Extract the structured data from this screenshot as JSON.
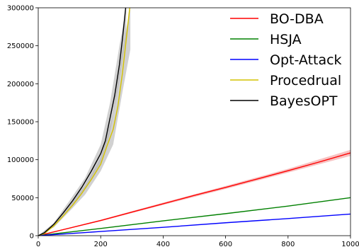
{
  "chart_data": {
    "type": "line",
    "title": "",
    "xlabel": "",
    "ylabel": "",
    "xlim": [
      0,
      1000
    ],
    "ylim": [
      0,
      300000
    ],
    "xticks": [
      0,
      200,
      400,
      600,
      800,
      1000
    ],
    "xtick_labels": [
      "0",
      "200",
      "400",
      "600",
      "800",
      "1000"
    ],
    "yticks": [
      0,
      50000,
      100000,
      150000,
      200000,
      250000,
      300000
    ],
    "ytick_labels": [
      "0",
      "50000",
      "100000",
      "150000",
      "200000",
      "250000",
      "300000"
    ],
    "grid": false,
    "legend_position": "top-right",
    "series": [
      {
        "name": "BO-DBA",
        "color": "#ff0000",
        "band_color": "#f4a6a6",
        "points": [
          [
            0,
            0
          ],
          [
            100,
            10000
          ],
          [
            200,
            20000
          ],
          [
            300,
            31000
          ],
          [
            400,
            42000
          ],
          [
            500,
            53000
          ],
          [
            600,
            63500
          ],
          [
            700,
            74500
          ],
          [
            800,
            85500
          ],
          [
            900,
            97000
          ],
          [
            1000,
            109000
          ]
        ],
        "band": [
          [
            0,
            0,
            0
          ],
          [
            200,
            19000,
            21000
          ],
          [
            400,
            40500,
            43500
          ],
          [
            600,
            61500,
            65500
          ],
          [
            800,
            83000,
            88000
          ],
          [
            1000,
            105000,
            113000
          ]
        ]
      },
      {
        "name": "HSJA",
        "color": "#008000",
        "points": [
          [
            0,
            0
          ],
          [
            200,
            9500
          ],
          [
            400,
            19500
          ],
          [
            600,
            29000
          ],
          [
            800,
            39000
          ],
          [
            1000,
            50000
          ]
        ]
      },
      {
        "name": "Opt-Attack",
        "color": "#0000ff",
        "points": [
          [
            0,
            0
          ],
          [
            200,
            5500
          ],
          [
            400,
            11000
          ],
          [
            600,
            17000
          ],
          [
            800,
            22500
          ],
          [
            1000,
            28500
          ]
        ]
      },
      {
        "name": "Procedrual",
        "color": "#d4c200",
        "points": [
          [
            0,
            0
          ],
          [
            20,
            3000
          ],
          [
            50,
            13000
          ],
          [
            80,
            26000
          ],
          [
            110,
            40000
          ],
          [
            140,
            56000
          ],
          [
            170,
            74000
          ],
          [
            200,
            94000
          ],
          [
            220,
            118000
          ],
          [
            240,
            140000
          ],
          [
            255,
            170000
          ],
          [
            270,
            215000
          ],
          [
            285,
            270000
          ],
          [
            293,
            300000
          ]
        ],
        "band": [
          [
            0,
            0,
            0
          ],
          [
            50,
            11000,
            15000
          ],
          [
            100,
            32000,
            40000
          ],
          [
            150,
            54000,
            66000
          ],
          [
            200,
            85000,
            103000
          ],
          [
            240,
            120000,
            160000
          ],
          [
            270,
            190000,
            245000
          ],
          [
            295,
            245000,
            300000
          ]
        ]
      },
      {
        "name": "BayesOPT",
        "color": "#000000",
        "points": [
          [
            0,
            0
          ],
          [
            20,
            4000
          ],
          [
            50,
            15000
          ],
          [
            80,
            30000
          ],
          [
            110,
            46000
          ],
          [
            140,
            64000
          ],
          [
            170,
            85000
          ],
          [
            200,
            108000
          ],
          [
            215,
            125000
          ],
          [
            230,
            155000
          ],
          [
            245,
            185000
          ],
          [
            260,
            225000
          ],
          [
            270,
            260000
          ],
          [
            280,
            300000
          ]
        ],
        "band": [
          [
            0,
            0,
            0
          ],
          [
            50,
            13000,
            17000
          ],
          [
            100,
            36000,
            46000
          ],
          [
            150,
            62000,
            76000
          ],
          [
            200,
            96000,
            120000
          ],
          [
            230,
            135000,
            175000
          ],
          [
            260,
            205000,
            250000
          ],
          [
            282,
            265000,
            300000
          ]
        ]
      }
    ]
  }
}
